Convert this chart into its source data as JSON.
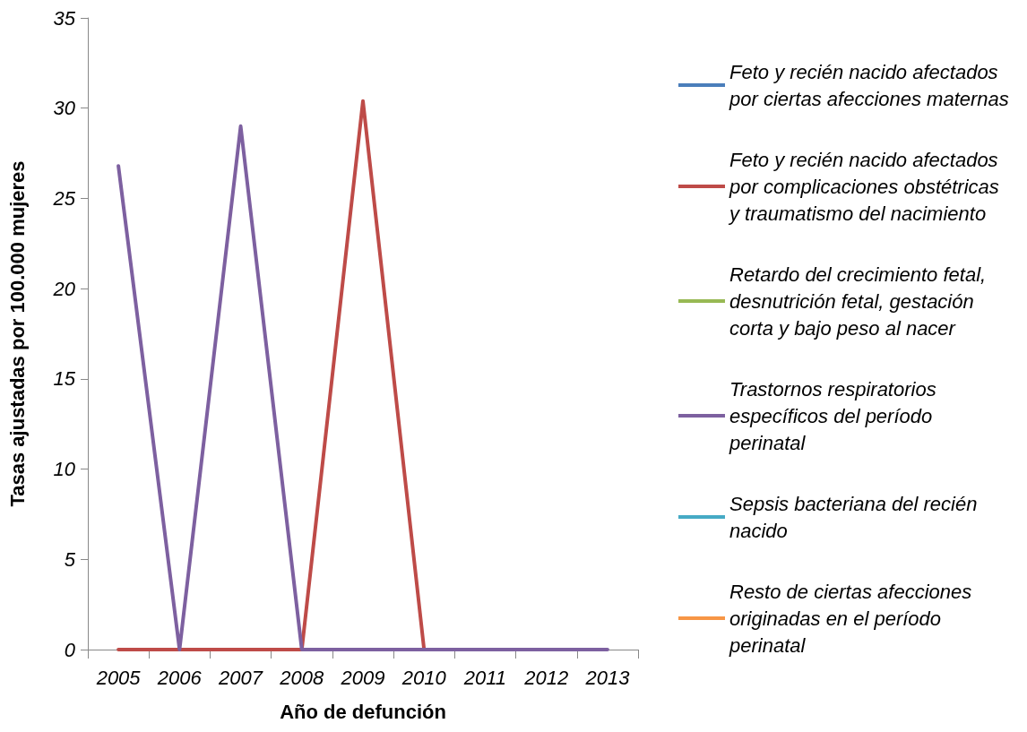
{
  "chart_data": {
    "type": "line",
    "xlabel": "Año de defunción",
    "ylabel": "Tasas ajustadas por 100.000 mujeres",
    "categories": [
      "2005",
      "2006",
      "2007",
      "2008",
      "2009",
      "2010",
      "2011",
      "2012",
      "2013"
    ],
    "ylim": [
      0,
      35
    ],
    "yticks": [
      0,
      5,
      10,
      15,
      20,
      25,
      30,
      35
    ],
    "grid": false,
    "legend": "right",
    "marker": "none",
    "line_style": "solid",
    "series": [
      {
        "name": "Feto y recién nacido afectados por ciertas afecciones maternas",
        "color": "#4a7ebb",
        "values": [
          null,
          null,
          null,
          null,
          null,
          null,
          null,
          null,
          null
        ]
      },
      {
        "name": "Feto y recién nacido afectados por complicaciones obstétricas y traumatismo del nacimiento",
        "color": "#be4b48",
        "values": [
          0,
          0,
          0,
          0,
          30.4,
          0,
          null,
          null,
          null
        ]
      },
      {
        "name": "Retardo del crecimiento fetal, desnutrición fetal, gestación corta y bajo peso al nacer",
        "color": "#98b954",
        "values": [
          null,
          null,
          null,
          null,
          null,
          null,
          null,
          null,
          null
        ]
      },
      {
        "name": "Trastornos respiratorios específicos del período perinatal",
        "color": "#7d60a0",
        "values": [
          26.8,
          0,
          29.0,
          0,
          0,
          0,
          0,
          0,
          0
        ]
      },
      {
        "name": "Sepsis bacteriana del recién nacido",
        "color": "#46aac5",
        "values": [
          null,
          null,
          null,
          null,
          null,
          null,
          null,
          null,
          null
        ]
      },
      {
        "name": "Resto de ciertas afecciones originadas en el período perinatal",
        "color": "#f79646",
        "values": [
          null,
          null,
          null,
          null,
          null,
          null,
          null,
          null,
          null
        ]
      }
    ]
  }
}
